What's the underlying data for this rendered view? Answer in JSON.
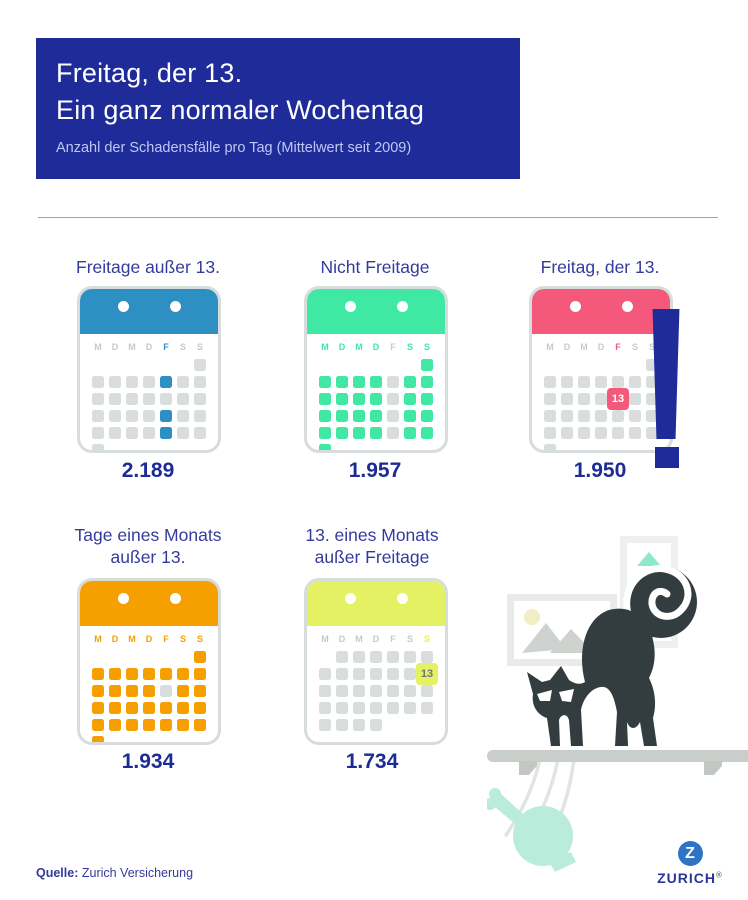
{
  "header": {
    "title_line1": "Freitag, der 13.",
    "title_line2": "Ein ganz normaler Wochentag",
    "subtitle": "Anzahl der Schadensfälle pro Tag (Mittelwert seit 2009)"
  },
  "colors": {
    "brand_blue": "#1E2B99",
    "title_text": "#353B9C",
    "number_text": "#1D2B97",
    "gray_cell": "#D9DDDD",
    "gray_letter": "#C4CBCB",
    "cat": "#333C3E",
    "shelf": "#CACECB",
    "mint_object": "#B9ECDA",
    "logo_blue": "#2F73C5"
  },
  "calendar_common": {
    "weekday_letters": [
      "M",
      "D",
      "M",
      "D",
      "F",
      "S",
      "S"
    ]
  },
  "calendars": [
    {
      "title_lines": [
        "Freitage außer 13."
      ],
      "value": "2.189",
      "accent": "#2E8FC2",
      "weekday_styles": "ggggagg",
      "grid": [
        "......g",
        "ggggagg",
        "ggggggg",
        "ggggagg",
        "ggggagg",
        "g......"
      ],
      "thirteen_label": "13",
      "thirteen_text": "#FFFFFF",
      "exclamation": false
    },
    {
      "title_lines": [
        "Nicht Freitage"
      ],
      "value": "1.957",
      "accent": "#3FE9A4",
      "weekday_styles": "aaaagaa",
      "grid": [
        "......a",
        "aaaagaa",
        "aaaagaa",
        "aaaagaa",
        "aaaagaa",
        "a......"
      ],
      "thirteen_label": "13",
      "thirteen_text": "#FFFFFF",
      "exclamation": false
    },
    {
      "title_lines": [
        "Freitag, der 13."
      ],
      "value": "1.950",
      "accent": "#F4587B",
      "weekday_styles": "ggggagg",
      "grid": [
        "......g",
        "ggggggg",
        "ggggtgg",
        "ggggggg",
        "ggggggg",
        "g......"
      ],
      "thirteen_label": "13",
      "thirteen_text": "#FFFFFF",
      "exclamation": true
    },
    {
      "title_lines": [
        "Tage eines Monats",
        "außer 13."
      ],
      "value": "1.934",
      "accent": "#F69F00",
      "weekday_styles": "aaaaaaa",
      "grid": [
        "......a",
        "aaaaaaa",
        "aaaagaa",
        "aaaaaaa",
        "aaaaaaa",
        "a......"
      ],
      "thirteen_label": "13",
      "thirteen_text": "#FFFFFF",
      "exclamation": false
    },
    {
      "title_lines": [
        "13. eines Monats",
        "außer Freitage"
      ],
      "value": "1.734",
      "accent": "#E3F163",
      "weekday_styles": "gggggga",
      "grid": [
        ".gggggg",
        "ggggggt",
        "ggggggg",
        "ggggggg",
        "gggg..."
      ],
      "thirteen_label": "13",
      "thirteen_text": "#6D7575",
      "exclamation": false
    }
  ],
  "footer": {
    "source_label": "Quelle:",
    "source_text": "Zurich Versicherung"
  },
  "logo": {
    "z": "Z",
    "name": "ZURICH",
    "reg": "®"
  },
  "chart_data": {
    "type": "bar",
    "title": "Freitag, der 13. Ein ganz normaler Wochentag",
    "subtitle": "Anzahl der Schadensfälle pro Tag (Mittelwert seit 2009)",
    "categories": [
      "Freitage außer 13.",
      "Nicht Freitage",
      "Freitag, der 13.",
      "Tage eines Monats außer 13.",
      "13. eines Monats außer Freitage"
    ],
    "values": [
      2189,
      1957,
      1950,
      1934,
      1734
    ],
    "display_values": [
      "2.189",
      "1.957",
      "1.950",
      "1.934",
      "1.734"
    ],
    "ylabel": "Schadensfälle pro Tag",
    "source": "Zurich Versicherung",
    "legend_position": "none",
    "grid": false
  }
}
